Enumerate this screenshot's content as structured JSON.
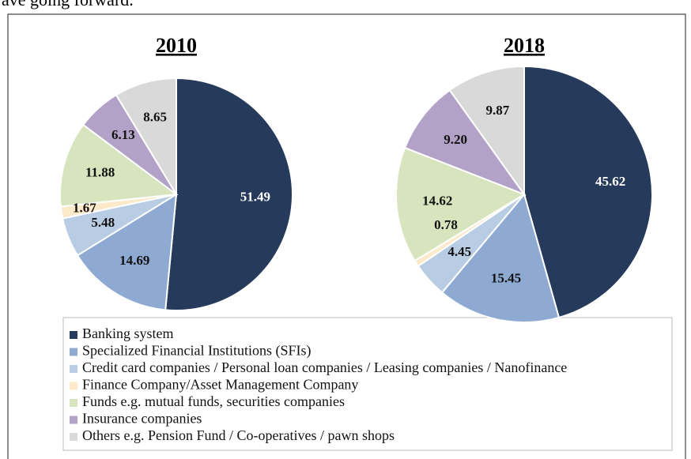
{
  "header_fragment": "ave going forward.",
  "legend": {
    "labels": [
      "Banking system",
      "Specialized Financial Institutions (SFIs)",
      "Credit card companies / Personal loan companies / Leasing companies / Nanofinance",
      "Finance Company/Asset Management Company",
      "Funds e.g. mutual funds, securities companies",
      "Insurance companies",
      "Others e.g. Pension Fund / Co-operatives / pawn shops"
    ],
    "colors": [
      "#263a5c",
      "#8eaad3",
      "#b8cce4",
      "#fdeacb",
      "#d7e4bd",
      "#b3a2c7",
      "#d9d9d9"
    ]
  },
  "chart_data": [
    {
      "type": "pie",
      "title": "2010",
      "values": [
        51.49,
        14.69,
        5.48,
        1.67,
        11.88,
        6.13,
        8.65
      ],
      "value_labels": [
        "51.49",
        "14.69",
        "5.48",
        "1.67",
        "11.88",
        "6.13",
        "8.65"
      ]
    },
    {
      "type": "pie",
      "title": "2018",
      "values": [
        45.62,
        15.45,
        4.45,
        0.78,
        14.62,
        9.2,
        9.87
      ],
      "value_labels": [
        "45.62",
        "15.45",
        "4.45",
        "0.78",
        "14.62",
        "9.20",
        "9.87"
      ]
    }
  ]
}
